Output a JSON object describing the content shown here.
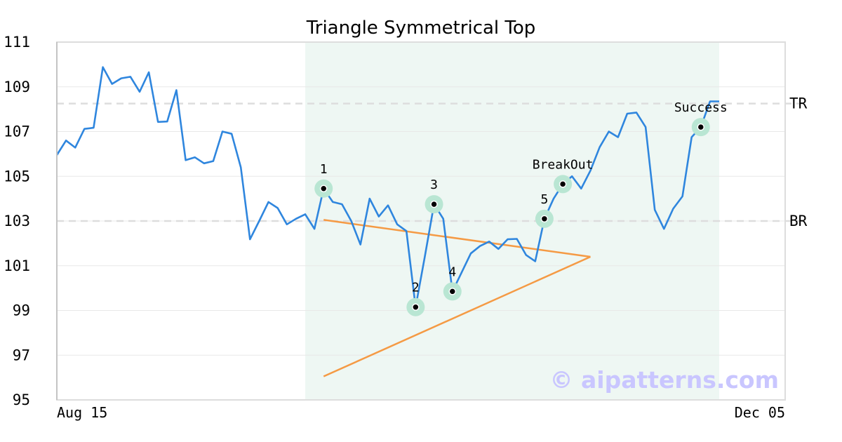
{
  "chart_data": {
    "type": "line",
    "title": "Triangle Symmetrical Top",
    "x_tick_labels": [
      "Aug 15",
      "Dec 05"
    ],
    "yticks": [
      95,
      97,
      99,
      101,
      103,
      105,
      107,
      109,
      111
    ],
    "ylim": [
      95,
      111
    ],
    "grid": "horizontal",
    "colors": {
      "price": "#2f86de",
      "triangle": "#f59a44",
      "pattern_region": "#eef7f3",
      "point_halo": "#b9e6d3",
      "reference_line": "#dddddd",
      "watermark": "#c9c6ff"
    },
    "series": [
      {
        "values": [
          105.95,
          106.6,
          106.28,
          107.12,
          107.17,
          109.88,
          109.13,
          109.38,
          109.45,
          108.78,
          109.65,
          107.43,
          107.45,
          108.85,
          105.72,
          105.85,
          105.58,
          105.68,
          107.0,
          106.9,
          105.4,
          102.18,
          103.0,
          103.85,
          103.58,
          102.85,
          103.1,
          103.3,
          102.65,
          104.45,
          103.85,
          103.75,
          103.0,
          101.95,
          104.0,
          103.2,
          103.7,
          102.85,
          102.55,
          99.15,
          101.4,
          103.75,
          103.1,
          99.85,
          100.7,
          101.55,
          101.88,
          102.08,
          101.75,
          102.18,
          102.2,
          101.48,
          101.2,
          103.1,
          104.0,
          104.65,
          105.0,
          104.45,
          105.25,
          106.3,
          107.0,
          106.75,
          107.8,
          107.85,
          107.2,
          103.5,
          102.65,
          103.55,
          104.1,
          106.75,
          107.2,
          108.35,
          108.35
        ]
      }
    ],
    "triangle_lines": [
      {
        "from": {
          "i": 29,
          "v": 103.05
        },
        "to": {
          "i": 58,
          "v": 101.4
        }
      },
      {
        "from": {
          "i": 29,
          "v": 96.05
        },
        "to": {
          "i": 58,
          "v": 101.4
        }
      }
    ],
    "pattern_region": {
      "from_i": 27,
      "to_i": 72
    },
    "reference_lines": [
      {
        "name": "TR",
        "value": 108.25
      },
      {
        "name": "BR",
        "value": 103.0
      }
    ],
    "points": [
      {
        "label": "1",
        "i": 29,
        "v": 104.45
      },
      {
        "label": "2",
        "i": 39,
        "v": 99.15
      },
      {
        "label": "3",
        "i": 41,
        "v": 103.75
      },
      {
        "label": "4",
        "i": 43,
        "v": 99.85
      },
      {
        "label": "5",
        "i": 53,
        "v": 103.1
      },
      {
        "label": "BreakOut",
        "i": 55,
        "v": 104.65
      },
      {
        "label": "Success",
        "i": 70,
        "v": 107.2
      }
    ],
    "watermark": "© aipatterns.com"
  }
}
